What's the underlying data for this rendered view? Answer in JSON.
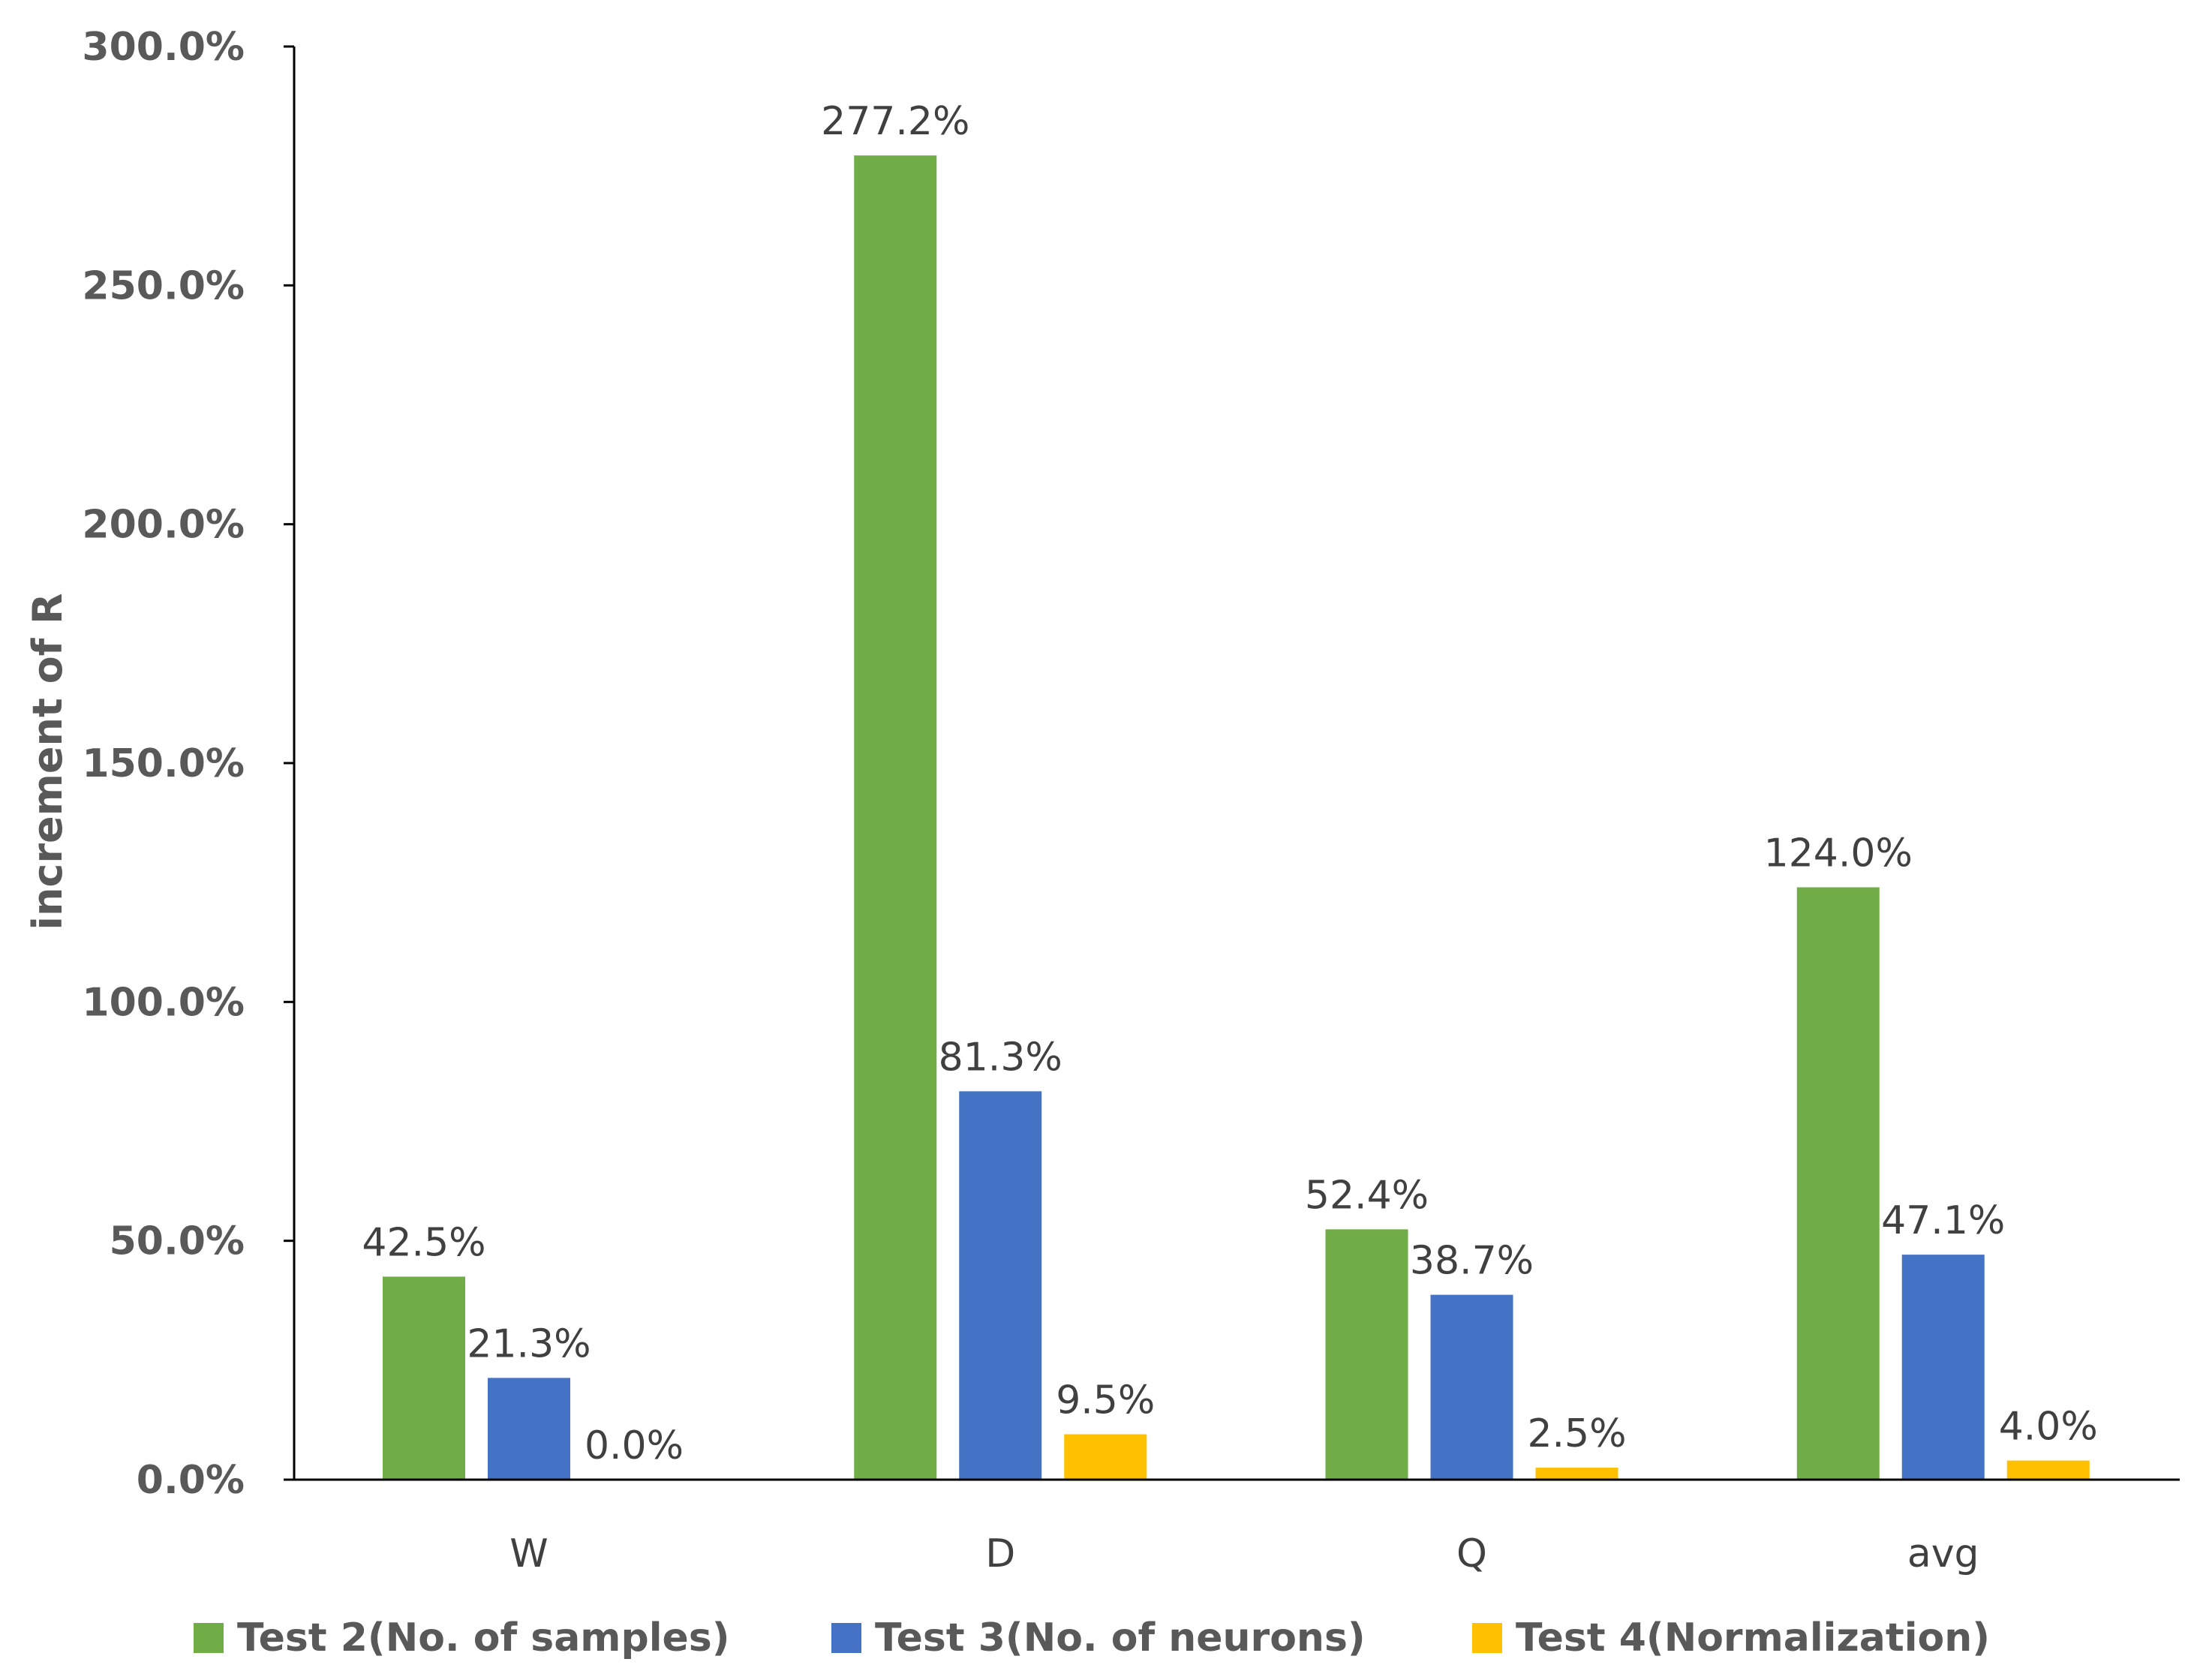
{
  "chart_data": {
    "type": "bar",
    "title": "",
    "xlabel": "",
    "ylabel": "increment of R",
    "ylim": [
      0,
      300
    ],
    "y_ticks": [
      0,
      50,
      100,
      150,
      200,
      250,
      300
    ],
    "y_tick_labels": [
      "0.0%",
      "50.0%",
      "100.0%",
      "150.0%",
      "200.0%",
      "250.0%",
      "300.0%"
    ],
    "categories": [
      "W",
      "D",
      "Q",
      "avg"
    ],
    "series": [
      {
        "name": "Test 2(No. of samples)",
        "color": "#70AD47",
        "values": [
          42.5,
          277.2,
          52.4,
          124.0
        ],
        "labels": [
          "42.5%",
          "277.2%",
          "52.4%",
          "124.0%"
        ]
      },
      {
        "name": "Test 3(No. of neurons)",
        "color": "#4472C4",
        "values": [
          21.3,
          81.3,
          38.7,
          47.1
        ],
        "labels": [
          "21.3%",
          "81.3%",
          "38.7%",
          "47.1%"
        ]
      },
      {
        "name": "Test 4(Normalization)",
        "color": "#FFC000",
        "values": [
          0.0,
          9.5,
          2.5,
          4.0
        ],
        "labels": [
          "0.0%",
          "9.5%",
          "2.5%",
          "4.0%"
        ]
      }
    ],
    "grid": false,
    "legend_position": "bottom"
  }
}
